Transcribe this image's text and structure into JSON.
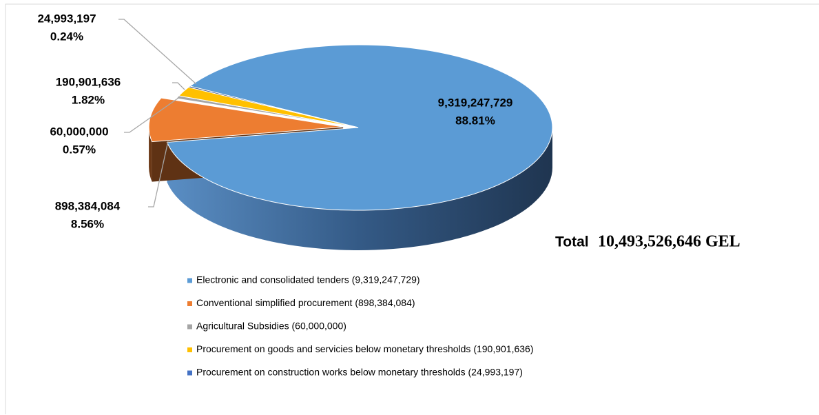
{
  "chart_data": {
    "type": "pie",
    "categories": [
      "Electronic and consolidated tenders  (9,319,247,729)",
      "Conventional simplified procurement  (898,384,084)",
      "Agricultural Subsidies (60,000,000)",
      "Procurement on goods and servicies  below monetary thresholds (190,901,636)",
      "Procurement on construction works  below monetary thresholds (24,993,197)"
    ],
    "values": [
      9319247729,
      898384084,
      60000000,
      190901636,
      24993197
    ],
    "value_labels": [
      "9,319,247,729",
      "898,384,084",
      "60,000,000",
      "190,901,636",
      "24,993,197"
    ],
    "percents": [
      88.81,
      8.56,
      0.57,
      1.82,
      0.24
    ],
    "percent_labels": [
      "88.81%",
      "8.56%",
      "0.57%",
      "1.82%",
      "0.24%"
    ],
    "colors": [
      "#5b9bd5",
      "#ed7d31",
      "#a5a5a5",
      "#ffc000",
      "#264478"
    ],
    "exploded": [
      false,
      true,
      false,
      false,
      false
    ],
    "total_text": [
      "Total",
      "10,493,526,646 GEL"
    ]
  }
}
